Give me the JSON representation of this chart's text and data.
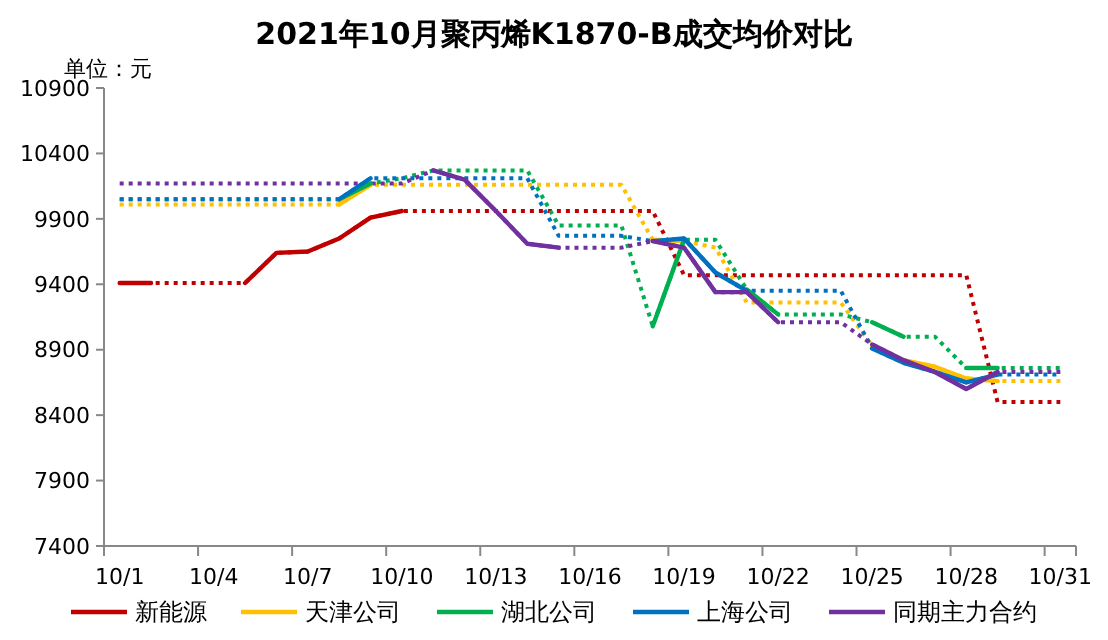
{
  "chart_data": {
    "type": "line",
    "title": "2021年10月聚丙烯K1870-B成交均价对比",
    "annotations": [
      "单位：元"
    ],
    "categories": [
      "10/1",
      null,
      null,
      "10/4",
      null,
      null,
      "10/7",
      null,
      null,
      "10/10",
      null,
      null,
      "10/13",
      null,
      null,
      "10/16",
      null,
      null,
      "10/19",
      null,
      null,
      "10/22",
      null,
      null,
      "10/25",
      null,
      null,
      "10/28",
      null,
      null,
      "10/31"
    ],
    "ylim": [
      7400,
      10900
    ],
    "yticks": [
      7400,
      7900,
      8400,
      8900,
      9400,
      9900,
      10400,
      10900
    ],
    "legend": "bottom",
    "grid": false,
    "series": [
      {
        "color": "#c00000",
        "line_style": "dotted",
        "values": [
          9410,
          9410,
          9410,
          9410,
          9410,
          9640,
          9650,
          9750,
          9910,
          9960,
          9960,
          9960,
          9960,
          9960,
          9960,
          9960,
          9960,
          9960,
          9470,
          9470,
          9470,
          9470,
          9470,
          9470,
          9470,
          9470,
          9470,
          9470,
          8500,
          8500,
          8500
        ]
      },
      {
        "color": "#ffc000",
        "line_style": "dotted",
        "values": [
          10010,
          10010,
          10010,
          10010,
          10010,
          10010,
          10010,
          10010,
          10160,
          10160,
          10160,
          10160,
          10160,
          10160,
          10160,
          10160,
          10160,
          9740,
          9730,
          9680,
          9260,
          9260,
          9260,
          9260,
          8930,
          8820,
          8770,
          8680,
          8660,
          8660,
          8660
        ]
      },
      {
        "color": "#00b050",
        "line_style": "dotted",
        "values": [
          10050,
          10050,
          10050,
          10050,
          10050,
          10050,
          10050,
          10050,
          10170,
          10210,
          10270,
          10270,
          10270,
          10270,
          9850,
          9850,
          9850,
          9080,
          9740,
          9740,
          9360,
          9170,
          9170,
          9170,
          9110,
          9000,
          9000,
          8760,
          8760,
          8760,
          8760
        ]
      },
      {
        "color": "#0070c0",
        "line_style": "dotted",
        "values": [
          10050,
          10050,
          10050,
          10050,
          10050,
          10050,
          10050,
          10050,
          10210,
          10210,
          10210,
          10210,
          10210,
          10210,
          9770,
          9770,
          9770,
          9730,
          9750,
          9490,
          9350,
          9350,
          9350,
          9350,
          8910,
          8800,
          8730,
          8650,
          8710,
          8710,
          8710
        ]
      },
      {
        "color": "#7030a0",
        "line_style": "dotted",
        "values": [
          10170,
          10170,
          10170,
          10170,
          10170,
          10170,
          10170,
          10170,
          10170,
          10170,
          10270,
          10200,
          9960,
          9710,
          9680,
          9680,
          9680,
          9730,
          9680,
          9340,
          9340,
          9110,
          9110,
          9110,
          8940,
          8820,
          8730,
          8600,
          8730,
          8730,
          8730
        ]
      },
      {
        "name": "新能源",
        "color": "#c00000",
        "line_style": "solid",
        "values": [
          9410,
          9410,
          null,
          null,
          9410,
          9640,
          9650,
          9750,
          9910,
          9960,
          null,
          null,
          null,
          null,
          null,
          null,
          null,
          null,
          null,
          null,
          null,
          null,
          null,
          null,
          null,
          null,
          null,
          null,
          null,
          null,
          null
        ]
      },
      {
        "name": "天津公司",
        "color": "#ffc000",
        "line_style": "solid",
        "values": [
          null,
          null,
          null,
          null,
          null,
          null,
          null,
          10010,
          10160,
          null,
          null,
          null,
          null,
          null,
          null,
          null,
          null,
          9740,
          9730,
          null,
          null,
          null,
          null,
          null,
          8930,
          8820,
          8770,
          8680,
          8660,
          null,
          null
        ]
      },
      {
        "name": "湖北公司",
        "color": "#00b050",
        "line_style": "solid",
        "values": [
          null,
          null,
          null,
          null,
          null,
          null,
          null,
          10050,
          10170,
          null,
          null,
          null,
          null,
          null,
          null,
          null,
          null,
          9080,
          9740,
          null,
          9360,
          9170,
          null,
          null,
          9110,
          9000,
          null,
          8760,
          8760,
          null,
          null
        ]
      },
      {
        "name": "上海公司",
        "color": "#0070c0",
        "line_style": "solid",
        "values": [
          null,
          null,
          null,
          null,
          null,
          null,
          null,
          10050,
          10210,
          null,
          null,
          null,
          null,
          null,
          null,
          null,
          null,
          9730,
          9750,
          9490,
          9350,
          null,
          null,
          null,
          8910,
          8800,
          8730,
          8650,
          8710,
          null,
          null
        ]
      },
      {
        "name": "同期主力合约",
        "color": "#7030a0",
        "line_style": "solid",
        "values": [
          null,
          null,
          null,
          null,
          null,
          null,
          null,
          null,
          null,
          null,
          10270,
          10200,
          9960,
          9710,
          9680,
          null,
          null,
          9730,
          9680,
          9340,
          9340,
          9110,
          null,
          null,
          8940,
          8820,
          8730,
          8600,
          8730,
          null,
          null
        ]
      }
    ]
  }
}
